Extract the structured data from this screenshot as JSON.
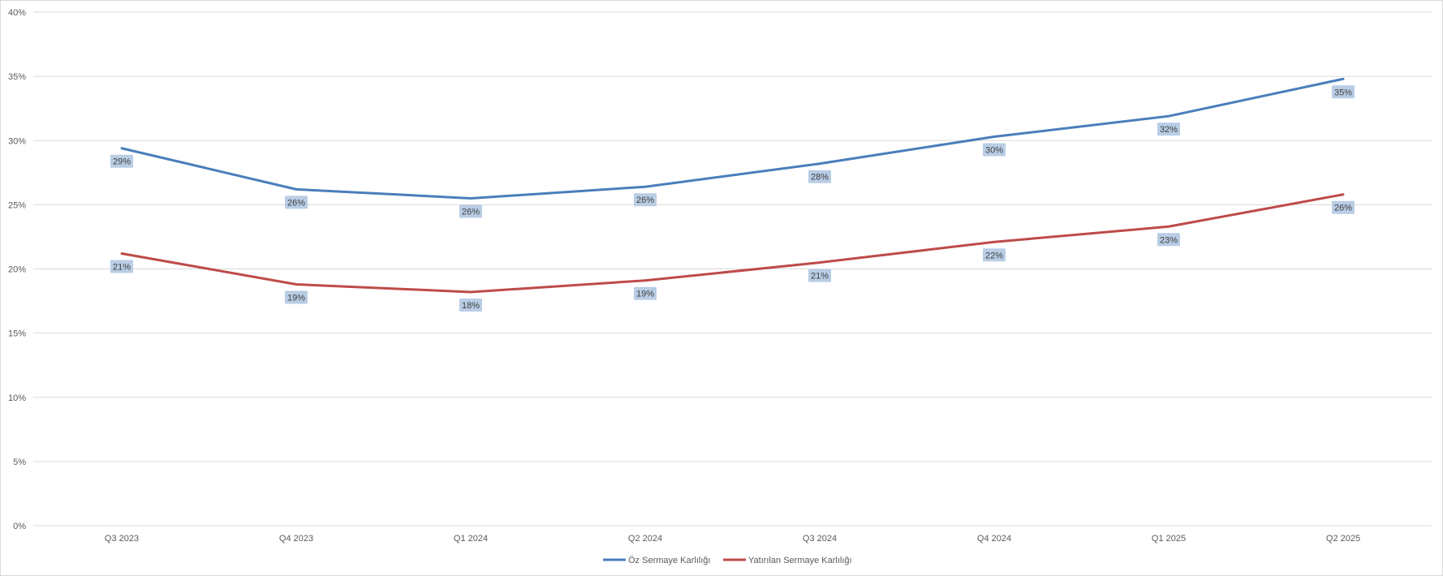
{
  "chart_data": {
    "type": "line",
    "title": "",
    "xlabel": "",
    "ylabel": "",
    "categories": [
      "Q3 2023",
      "Q4 2023",
      "Q1 2024",
      "Q2 2024",
      "Q3 2024",
      "Q4 2024",
      "Q1 2025",
      "Q2 2025"
    ],
    "ylim": [
      0,
      40
    ],
    "yticks": [
      0,
      5,
      10,
      15,
      20,
      25,
      30,
      35,
      40
    ],
    "ytick_labels": [
      "0%",
      "5%",
      "10%",
      "15%",
      "20%",
      "25%",
      "30%",
      "35%",
      "40%"
    ],
    "grid": true,
    "legend_position": "bottom",
    "series": [
      {
        "name": "Öz Sermaye Karlılığı",
        "color": "#4a7ebb",
        "values": [
          29.4,
          26.2,
          25.5,
          26.4,
          28.2,
          30.3,
          31.9,
          34.8
        ],
        "labels": [
          "29%",
          "26%",
          "26%",
          "26%",
          "28%",
          "30%",
          "32%",
          "35%"
        ]
      },
      {
        "name": "Yatırılan Sermaye Karlılığı",
        "color": "#be4b48",
        "values": [
          21.2,
          18.8,
          18.2,
          19.1,
          20.5,
          22.1,
          23.3,
          25.8
        ],
        "labels": [
          "21%",
          "19%",
          "18%",
          "19%",
          "21%",
          "22%",
          "23%",
          "26%"
        ]
      }
    ],
    "data_label_bg": "#b9cde5",
    "grid_color": "#d9d9d9"
  }
}
